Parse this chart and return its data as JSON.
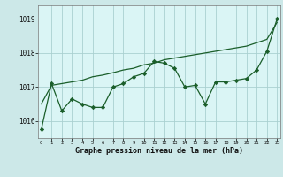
{
  "x": [
    0,
    1,
    2,
    3,
    4,
    5,
    6,
    7,
    8,
    9,
    10,
    11,
    12,
    13,
    14,
    15,
    16,
    17,
    18,
    19,
    20,
    21,
    22,
    23
  ],
  "y_main": [
    1015.75,
    1017.1,
    1016.3,
    1016.65,
    1016.5,
    1016.4,
    1016.4,
    1017.0,
    1017.1,
    1017.3,
    1017.4,
    1017.75,
    1017.7,
    1017.55,
    1017.0,
    1017.05,
    1016.5,
    1017.15,
    1017.15,
    1017.2,
    1017.25,
    1017.5,
    1018.05,
    1019.0
  ],
  "y_trend": [
    1016.5,
    1017.05,
    1017.1,
    1017.15,
    1017.2,
    1017.3,
    1017.35,
    1017.42,
    1017.5,
    1017.55,
    1017.65,
    1017.7,
    1017.8,
    1017.85,
    1017.9,
    1017.95,
    1018.0,
    1018.05,
    1018.1,
    1018.15,
    1018.2,
    1018.3,
    1018.4,
    1018.9
  ],
  "bg_color": "#cce8e8",
  "plot_bg_color": "#daf5f5",
  "grid_color": "#aad0d0",
  "line_color": "#1a5e2a",
  "ylim": [
    1015.5,
    1019.4
  ],
  "yticks": [
    1016,
    1017,
    1018,
    1019
  ],
  "xlabel_label": "Graphe pression niveau de la mer (hPa)"
}
